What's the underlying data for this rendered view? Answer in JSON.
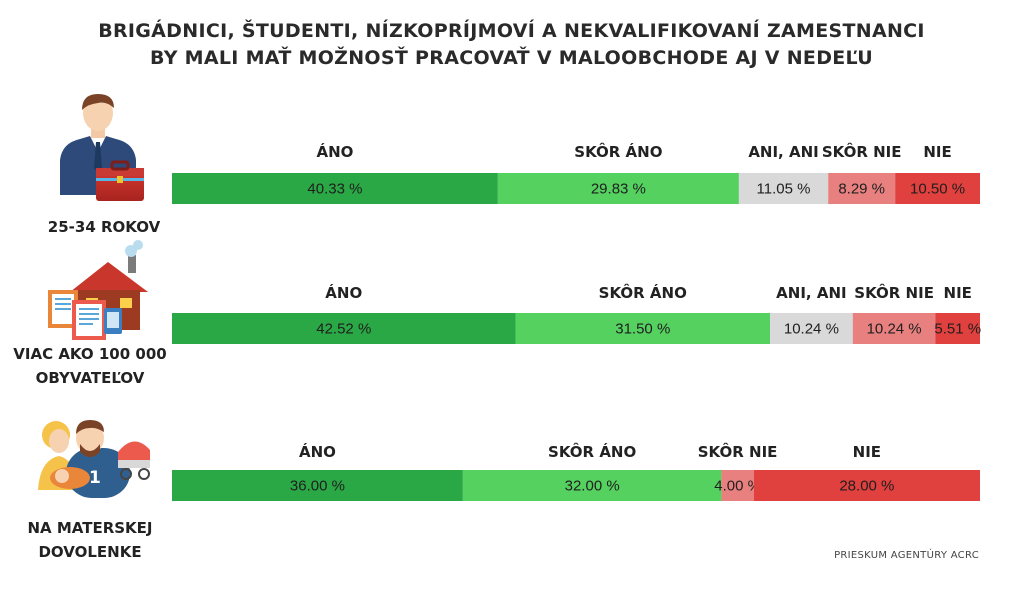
{
  "title": {
    "line1": "BRIGÁDNICI, ŠTUDENTI, NÍZKOPRÍJMOVÍ A NEKVALIFIKOVANÍ ZAMESTNANCI",
    "line2": "BY MALI MAŤ MOŽNOSŤ PRACOVAŤ V MALOOBCHODE AJ V NEDEĽU"
  },
  "source": "PRIESKUM AGENTÚRY ACRC",
  "colors": {
    "ano": "#2aa845",
    "skor_ano": "#55d160",
    "ani_ani": "#d9d9d9",
    "skor_nie": "#e98080",
    "nie": "#e0403e"
  },
  "chart_data": [
    {
      "type": "bar",
      "orientation": "stacked-horizontal",
      "category": [
        "25-34 ROKOV"
      ],
      "icon": "businessman-icon",
      "series": [
        {
          "name": "ÁNO",
          "value": 40.33,
          "label": "40.33 %",
          "color_key": "ano"
        },
        {
          "name": "SKÔR ÁNO",
          "value": 29.83,
          "label": "29.83 %",
          "color_key": "skor_ano"
        },
        {
          "name": "ANI, ANI",
          "value": 11.05,
          "label": "11.05 %",
          "color_key": "ani_ani"
        },
        {
          "name": "SKÔR NIE",
          "value": 8.29,
          "label": "8.29 %",
          "color_key": "skor_nie"
        },
        {
          "name": "NIE",
          "value": 10.5,
          "label": "10.50 %",
          "color_key": "nie"
        }
      ]
    },
    {
      "type": "bar",
      "orientation": "stacked-horizontal",
      "category": [
        "VIAC AKO 100 000",
        "OBYVATEĽOV"
      ],
      "icon": "city-house-icon",
      "series": [
        {
          "name": "ÁNO",
          "value": 42.52,
          "label": "42.52 %",
          "color_key": "ano"
        },
        {
          "name": "SKÔR ÁNO",
          "value": 31.5,
          "label": "31.50 %",
          "color_key": "skor_ano"
        },
        {
          "name": "ANI, ANI",
          "value": 10.24,
          "label": "10.24 %",
          "color_key": "ani_ani"
        },
        {
          "name": "SKÔR NIE",
          "value": 10.24,
          "label": "10.24 %",
          "color_key": "skor_nie"
        },
        {
          "name": "NIE",
          "value": 5.51,
          "label": "5.51 %",
          "color_key": "nie"
        }
      ]
    },
    {
      "type": "bar",
      "orientation": "stacked-horizontal",
      "category": [
        "NA MATERSKEJ",
        "DOVOLENKE"
      ],
      "icon": "family-icon",
      "series": [
        {
          "name": "ÁNO",
          "value": 36.0,
          "label": "36.00 %",
          "color_key": "ano"
        },
        {
          "name": "SKÔR ÁNO",
          "value": 32.0,
          "label": "32.00 %",
          "color_key": "skor_ano"
        },
        {
          "name": "SKÔR NIE",
          "value": 4.0,
          "label": "4.00 %",
          "color_key": "skor_nie"
        },
        {
          "name": "NIE",
          "value": 28.0,
          "label": "28.00 %",
          "color_key": "nie"
        }
      ]
    }
  ]
}
